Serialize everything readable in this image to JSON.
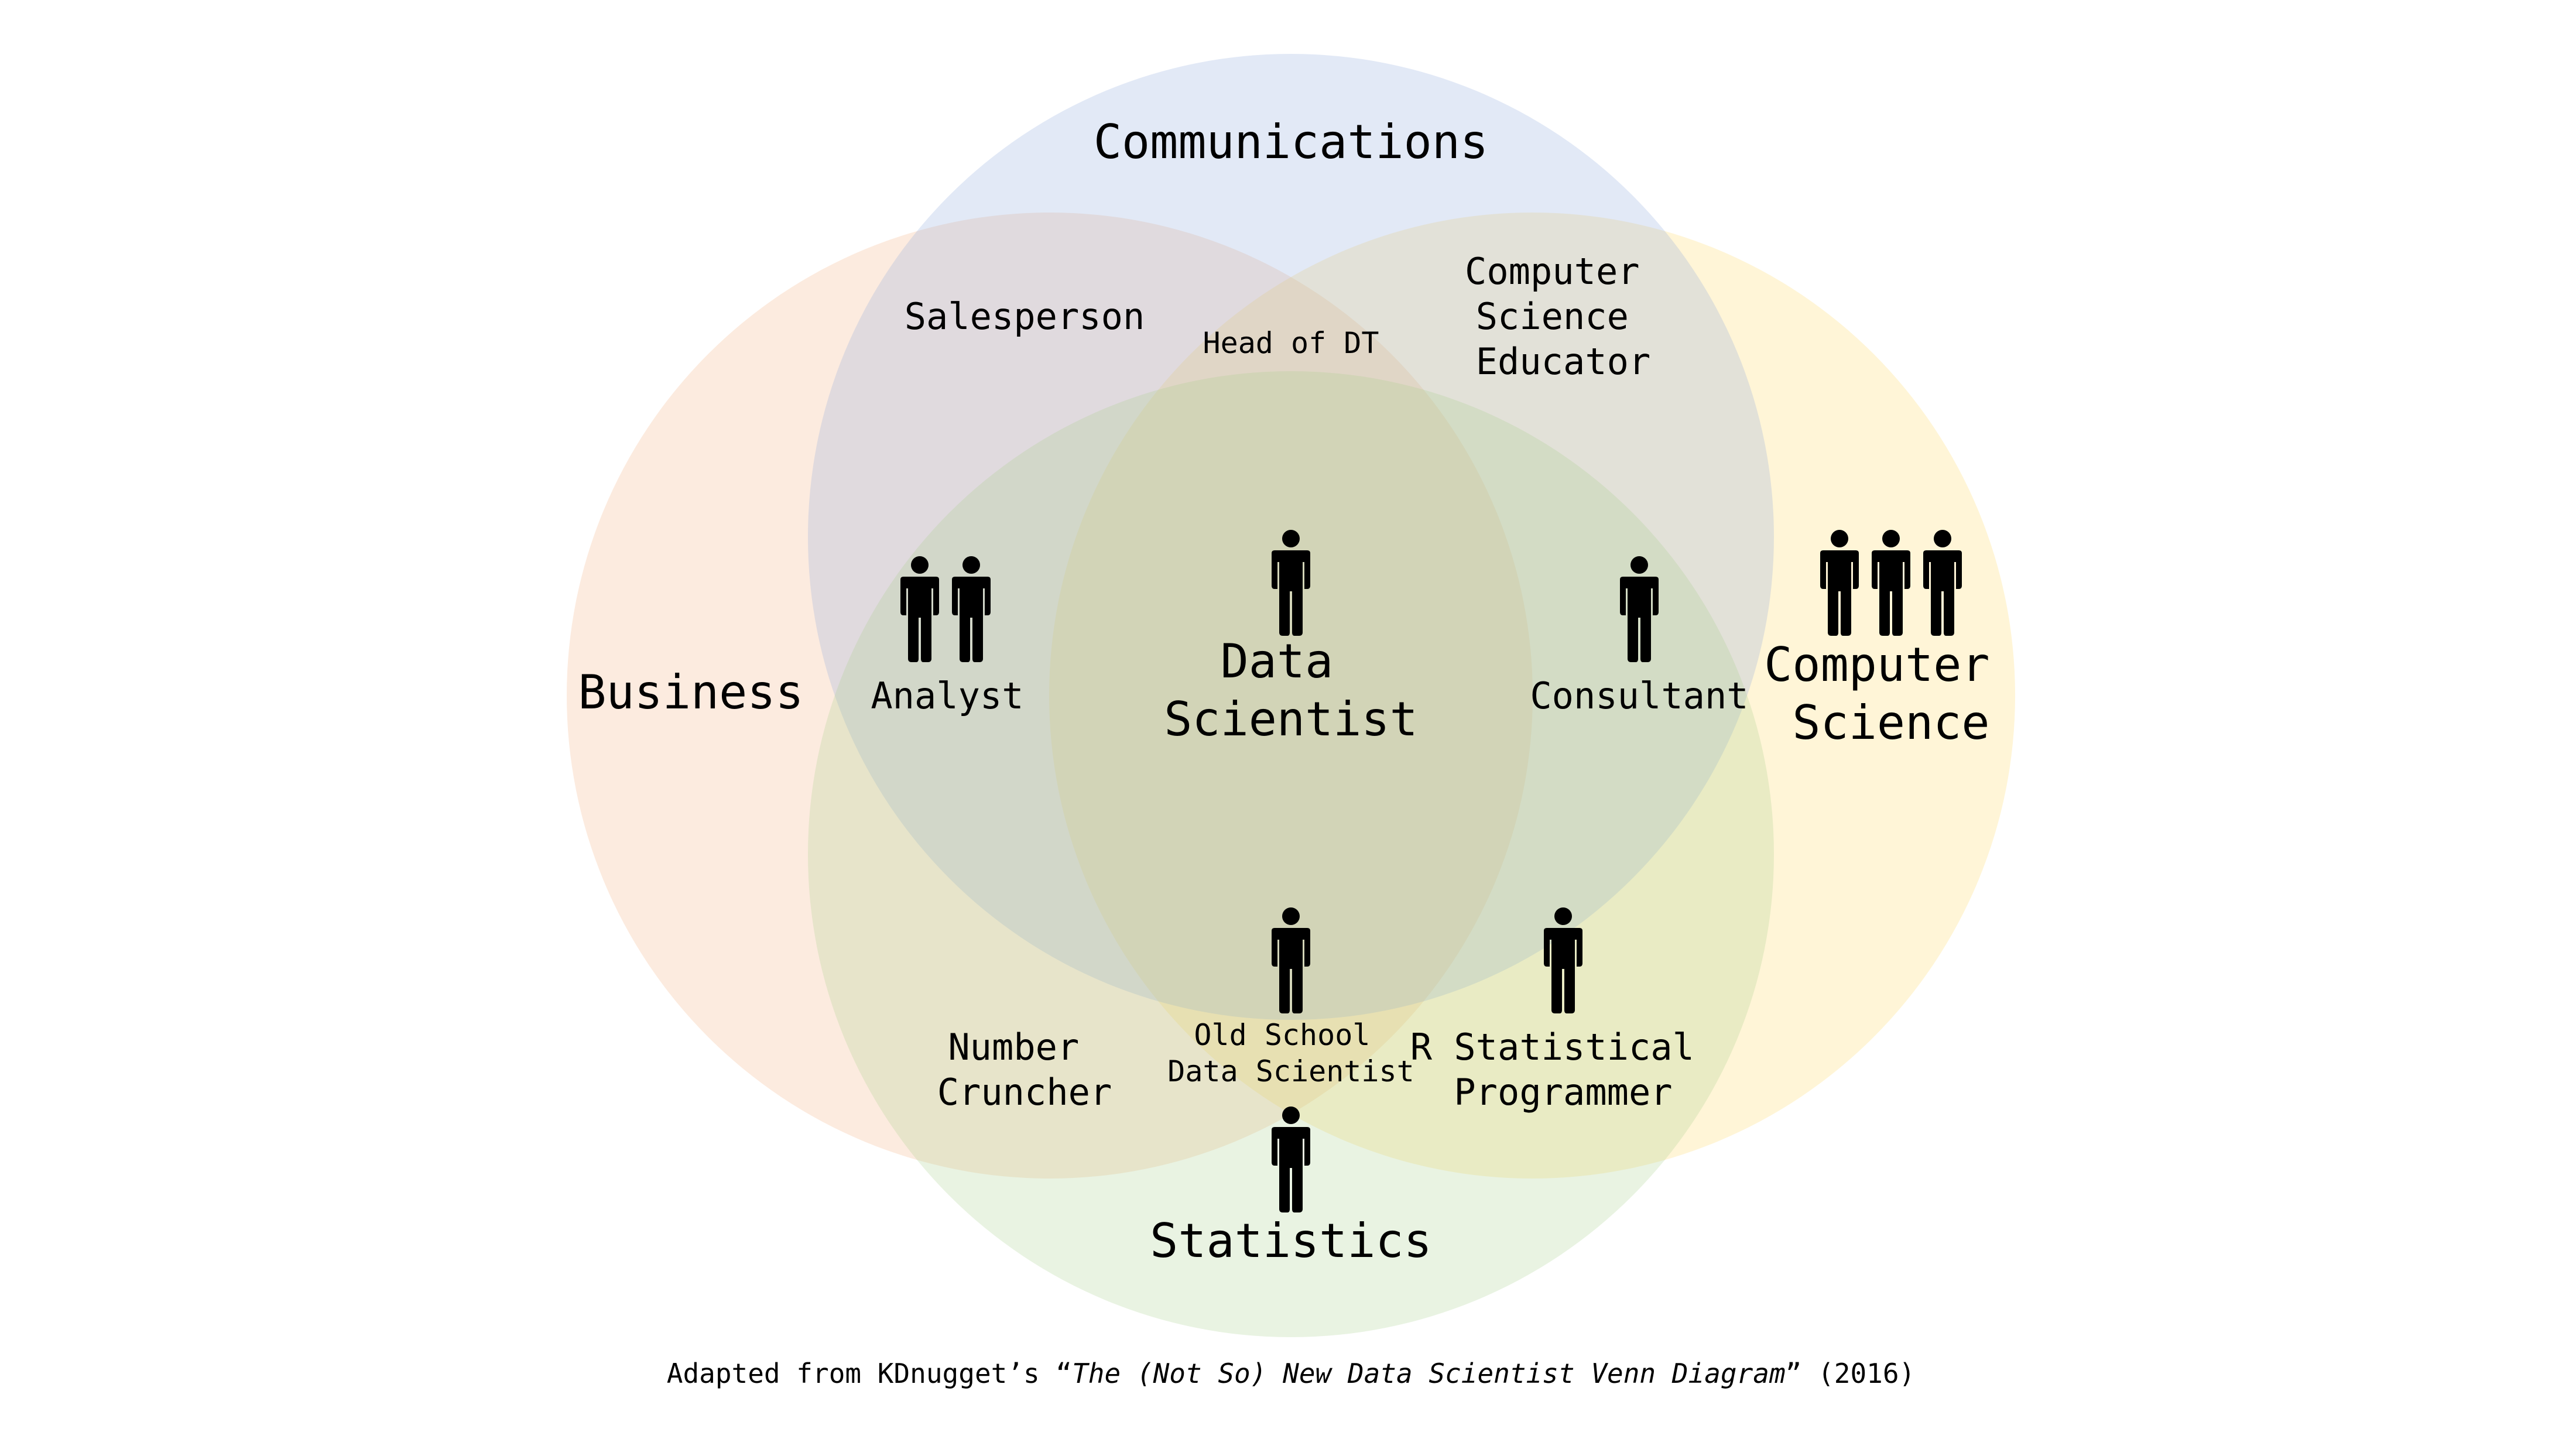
{
  "colors": {
    "business": "#f4b183",
    "communications": "#8faadc",
    "computer_science": "#ffd966",
    "statistics": "#a9d18e",
    "person_icon": "#000000"
  },
  "sets": {
    "communications": "Communications",
    "business": "Business",
    "computer_science": [
      "Computer",
      "Science"
    ],
    "statistics": "Statistics"
  },
  "roles": {
    "salesperson": "Salesperson",
    "head_of_dt": "Head of DT",
    "cs_educator": [
      "Computer",
      "Science",
      "Educator"
    ],
    "analyst": "Analyst",
    "data_scientist": [
      "Data",
      "Scientist"
    ],
    "consultant": "Consultant",
    "number_cruncher": [
      "Number",
      "Cruncher"
    ],
    "old_school": [
      "Old School",
      "Data Scientist"
    ],
    "r_programmer": [
      "R Statistical",
      "Programmer"
    ]
  },
  "people_counts": {
    "analyst": 2,
    "data_scientist": 1,
    "consultant": 1,
    "computer_science": 3,
    "old_school": 1,
    "r_programmer": 1,
    "statistics": 1
  },
  "caption": {
    "prefix": "Adapted from KDnugget’s “",
    "title": "The (Not So) New Data Scientist Venn Diagram",
    "suffix": "” (2016)"
  }
}
